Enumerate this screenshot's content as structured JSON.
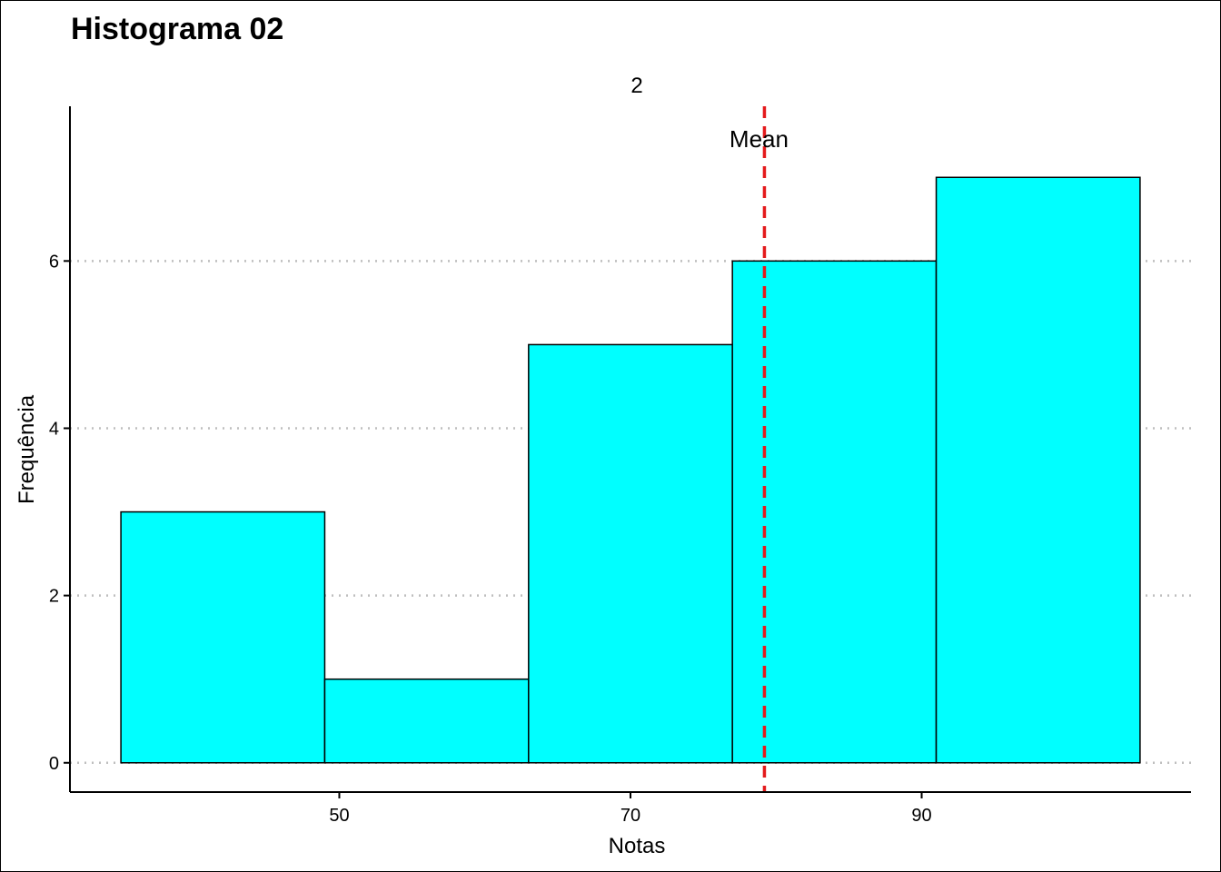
{
  "chart_data": {
    "type": "bar",
    "subtype": "histogram",
    "title": "Histograma 02",
    "subtitle": "2",
    "xlabel": "Notas",
    "ylabel": "Frequência",
    "bins": [
      {
        "x0": 35,
        "x1": 49,
        "count": 3
      },
      {
        "x0": 49,
        "x1": 63,
        "count": 1
      },
      {
        "x0": 63,
        "x1": 77,
        "count": 5
      },
      {
        "x0": 77,
        "x1": 91,
        "count": 6
      },
      {
        "x0": 91,
        "x1": 105,
        "count": 7
      }
    ],
    "xlim": [
      31.5,
      108.5
    ],
    "ylim": [
      -0.35,
      7.85
    ],
    "xticks": [
      50,
      70,
      90
    ],
    "yticks": [
      0,
      2,
      4,
      6
    ],
    "mean": 79.2,
    "mean_label": "Mean",
    "grid": "horizontal dotted",
    "colors": {
      "bar_fill": "#00FFFF",
      "bar_stroke": "#000000",
      "mean_line": "#E41A1C",
      "grid": "#BEBEBE"
    }
  }
}
